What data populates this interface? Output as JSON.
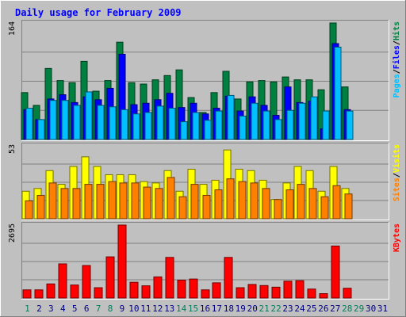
{
  "chart_data": {
    "title": "Daily usage for February 2009",
    "days": [
      "1",
      "2",
      "3",
      "4",
      "5",
      "6",
      "7",
      "8",
      "9",
      "10",
      "11",
      "12",
      "13",
      "14",
      "15",
      "16",
      "17",
      "18",
      "19",
      "20",
      "21",
      "22",
      "23",
      "24",
      "25",
      "26",
      "27",
      "28",
      "29",
      "30",
      "31"
    ],
    "weekend_days": [
      "1",
      "7",
      "8",
      "14",
      "15",
      "21",
      "22",
      "28",
      "29"
    ],
    "panels": [
      {
        "type": "bar",
        "max_label": "164",
        "ymax": 164,
        "legend": [
          "Pages",
          "/",
          "Files",
          "/",
          "Hits"
        ],
        "legend_colors": [
          "#00C0FF",
          "#000000",
          "#0000FF",
          "#000000",
          "#008040"
        ],
        "series": [
          {
            "name": "Hits",
            "color": "#008040",
            "values": [
              66,
              48,
              100,
              83,
              80,
              110,
              68,
              83,
              137,
              80,
              78,
              84,
              90,
              98,
              59,
              38,
              66,
              96,
              57,
              81,
              83,
              81,
              88,
              84,
              84,
              70,
              164,
              74,
              0,
              0,
              0
            ]
          },
          {
            "name": "Files",
            "color": "#0000FF",
            "values": [
              42,
              28,
              57,
              63,
              52,
              60,
              56,
              72,
              120,
              49,
              51,
              56,
              65,
              45,
              51,
              36,
              44,
              61,
              40,
              60,
              48,
              34,
              74,
              52,
              54,
              15,
              135,
              42,
              0,
              0,
              0
            ]
          },
          {
            "name": "Pages",
            "color": "#00C0FF",
            "values": [
              44,
              28,
              55,
              55,
              48,
              67,
              48,
              46,
              42,
              36,
              38,
              47,
              44,
              25,
              38,
              27,
              40,
              62,
              33,
              51,
              40,
              28,
              41,
              51,
              60,
              40,
              130,
              40,
              0,
              0,
              0
            ]
          }
        ]
      },
      {
        "type": "bar",
        "max_label": "53",
        "ymax": 53,
        "legend": [
          "Sites",
          "/",
          "Visits"
        ],
        "legend_colors": [
          "#FF8000",
          "#000000",
          "#FFFF00"
        ],
        "series": [
          {
            "name": "Visits",
            "color": "#FFFF00",
            "values": [
              20,
              22,
              35,
              25,
              38,
              45,
              38,
              32,
              32,
              32,
              27,
              26,
              35,
              20,
              36,
              25,
              28,
              50,
              36,
              35,
              28,
              14,
              26,
              38,
              35,
              20,
              38,
              22,
              0,
              0,
              0
            ]
          },
          {
            "name": "Sites",
            "color": "#FF8000",
            "values": [
              13,
              17,
              26,
              22,
              22,
              25,
              25,
              27,
              26,
              26,
              23,
              22,
              30,
              16,
              25,
              17,
              21,
              29,
              27,
              26,
              22,
              14,
              21,
              25,
              22,
              16,
              24,
              18,
              0,
              0,
              0
            ]
          }
        ]
      },
      {
        "type": "bar",
        "max_label": "2695",
        "ymax": 2695,
        "legend": [
          "KBytes"
        ],
        "legend_colors": [
          "#FF0000"
        ],
        "series": [
          {
            "name": "KBytes",
            "color": "#FF0000",
            "values": [
              300,
              300,
              520,
              1260,
              480,
              1200,
              380,
              1520,
              2695,
              580,
              450,
              780,
              1500,
              660,
              700,
              300,
              560,
              1500,
              380,
              500,
              460,
              400,
              620,
              640,
              330,
              160,
              1920,
              360,
              0,
              0,
              0
            ]
          }
        ]
      }
    ]
  }
}
